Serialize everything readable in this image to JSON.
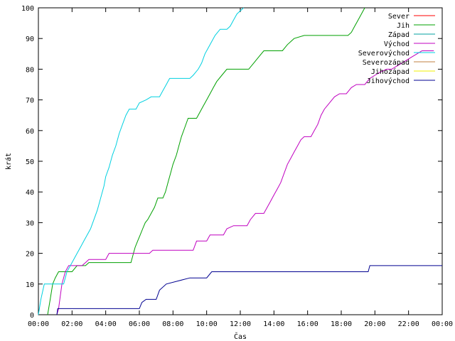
{
  "chart_data": {
    "type": "line",
    "xlabel": "Čas",
    "ylabel": "krát",
    "xlim": [
      0,
      24
    ],
    "ylim": [
      0,
      100
    ],
    "x_ticks": [
      "00:00",
      "02:00",
      "04:00",
      "06:00",
      "08:00",
      "10:00",
      "12:00",
      "14:00",
      "16:00",
      "18:00",
      "20:00",
      "22:00",
      "00:00"
    ],
    "y_ticks": [
      "0",
      "10",
      "20",
      "30",
      "40",
      "50",
      "60",
      "70",
      "80",
      "90",
      "100"
    ],
    "grid": false,
    "legend_position": "top-right",
    "series": [
      {
        "name": "Sever",
        "color": "#ff0000",
        "points": []
      },
      {
        "name": "Jih",
        "color": "#00a000",
        "points": [
          [
            0.55,
            0
          ],
          [
            0.7,
            5
          ],
          [
            0.85,
            10
          ],
          [
            1.0,
            12
          ],
          [
            1.2,
            14
          ],
          [
            2.0,
            14
          ],
          [
            2.3,
            16
          ],
          [
            2.8,
            16
          ],
          [
            3.0,
            17
          ],
          [
            5.5,
            17
          ],
          [
            5.65,
            20
          ],
          [
            5.75,
            22
          ],
          [
            5.9,
            24
          ],
          [
            6.05,
            26
          ],
          [
            6.2,
            28
          ],
          [
            6.35,
            30
          ],
          [
            6.5,
            31
          ],
          [
            6.7,
            33
          ],
          [
            6.9,
            35
          ],
          [
            7.1,
            38
          ],
          [
            7.4,
            38
          ],
          [
            7.55,
            40
          ],
          [
            7.7,
            43
          ],
          [
            7.85,
            46
          ],
          [
            8.0,
            49
          ],
          [
            8.2,
            52
          ],
          [
            8.35,
            55
          ],
          [
            8.5,
            58
          ],
          [
            8.7,
            61
          ],
          [
            8.9,
            64
          ],
          [
            9.4,
            64
          ],
          [
            9.6,
            66
          ],
          [
            9.8,
            68
          ],
          [
            10.0,
            70
          ],
          [
            10.2,
            72
          ],
          [
            10.4,
            74
          ],
          [
            10.6,
            76
          ],
          [
            10.9,
            78
          ],
          [
            11.2,
            80
          ],
          [
            12.5,
            80
          ],
          [
            12.8,
            82
          ],
          [
            13.1,
            84
          ],
          [
            13.4,
            86
          ],
          [
            14.5,
            86
          ],
          [
            14.8,
            88
          ],
          [
            15.2,
            90
          ],
          [
            15.8,
            91
          ],
          [
            18.4,
            91
          ],
          [
            18.6,
            92
          ],
          [
            18.8,
            94
          ],
          [
            19.0,
            96
          ],
          [
            19.2,
            98
          ],
          [
            19.4,
            100
          ]
        ]
      },
      {
        "name": "Západ",
        "color": "#00a0a0",
        "points": []
      },
      {
        "name": "Východ",
        "color": "#c000c0",
        "points": [
          [
            1.1,
            0
          ],
          [
            1.2,
            2
          ],
          [
            1.4,
            10
          ],
          [
            1.6,
            14
          ],
          [
            1.8,
            16
          ],
          [
            2.6,
            16
          ],
          [
            2.8,
            17
          ],
          [
            3.0,
            18
          ],
          [
            4.0,
            18
          ],
          [
            4.2,
            20
          ],
          [
            6.6,
            20
          ],
          [
            6.8,
            21
          ],
          [
            9.2,
            21
          ],
          [
            9.4,
            24
          ],
          [
            10.0,
            24
          ],
          [
            10.2,
            26
          ],
          [
            11.0,
            26
          ],
          [
            11.2,
            28
          ],
          [
            11.6,
            29
          ],
          [
            12.4,
            29
          ],
          [
            12.6,
            31
          ],
          [
            12.9,
            33
          ],
          [
            13.4,
            33
          ],
          [
            13.6,
            35
          ],
          [
            13.8,
            37
          ],
          [
            14.0,
            39
          ],
          [
            14.2,
            41
          ],
          [
            14.4,
            43
          ],
          [
            14.6,
            46
          ],
          [
            14.8,
            49
          ],
          [
            15.0,
            51
          ],
          [
            15.2,
            53
          ],
          [
            15.4,
            55
          ],
          [
            15.6,
            57
          ],
          [
            15.8,
            58
          ],
          [
            16.2,
            58
          ],
          [
            16.4,
            60
          ],
          [
            16.6,
            62
          ],
          [
            16.8,
            65
          ],
          [
            17.0,
            67
          ],
          [
            17.3,
            69
          ],
          [
            17.6,
            71
          ],
          [
            17.9,
            72
          ],
          [
            18.3,
            72
          ],
          [
            18.6,
            74
          ],
          [
            18.9,
            75
          ],
          [
            19.4,
            75
          ],
          [
            19.7,
            77
          ],
          [
            20.0,
            78
          ],
          [
            20.3,
            79
          ],
          [
            20.7,
            80
          ],
          [
            21.0,
            80
          ],
          [
            21.3,
            81
          ],
          [
            21.6,
            82
          ],
          [
            21.9,
            83
          ],
          [
            22.2,
            84
          ],
          [
            22.5,
            85
          ],
          [
            22.8,
            86
          ],
          [
            23.5,
            86
          ]
        ]
      },
      {
        "name": "Severovýchod",
        "color": "#00d0e0",
        "points": [
          [
            0.0,
            0
          ],
          [
            0.15,
            5
          ],
          [
            0.35,
            10
          ],
          [
            1.5,
            10
          ],
          [
            1.7,
            14
          ],
          [
            1.9,
            16
          ],
          [
            2.1,
            18
          ],
          [
            2.3,
            20
          ],
          [
            2.5,
            22
          ],
          [
            2.7,
            24
          ],
          [
            2.9,
            26
          ],
          [
            3.1,
            28
          ],
          [
            3.3,
            31
          ],
          [
            3.5,
            34
          ],
          [
            3.7,
            38
          ],
          [
            3.9,
            42
          ],
          [
            4.0,
            45
          ],
          [
            4.2,
            48
          ],
          [
            4.4,
            52
          ],
          [
            4.6,
            55
          ],
          [
            4.8,
            59
          ],
          [
            5.0,
            62
          ],
          [
            5.2,
            65
          ],
          [
            5.4,
            67
          ],
          [
            5.8,
            67
          ],
          [
            6.0,
            69
          ],
          [
            6.4,
            70
          ],
          [
            6.7,
            71
          ],
          [
            7.2,
            71
          ],
          [
            7.4,
            73
          ],
          [
            7.6,
            75
          ],
          [
            7.8,
            77
          ],
          [
            9.0,
            77
          ],
          [
            9.2,
            78
          ],
          [
            9.5,
            80
          ],
          [
            9.7,
            82
          ],
          [
            9.9,
            85
          ],
          [
            10.1,
            87
          ],
          [
            10.3,
            89
          ],
          [
            10.5,
            91
          ],
          [
            10.8,
            93
          ],
          [
            11.2,
            93
          ],
          [
            11.4,
            94
          ],
          [
            11.6,
            96
          ],
          [
            11.8,
            98
          ],
          [
            12.0,
            99
          ],
          [
            12.2,
            100
          ]
        ]
      },
      {
        "name": "Severozápad",
        "color": "#c08040",
        "points": []
      },
      {
        "name": "Jihozápad",
        "color": "#f0f000",
        "points": []
      },
      {
        "name": "Jihovýchod",
        "color": "#000090",
        "points": [
          [
            1.1,
            0
          ],
          [
            1.15,
            2
          ],
          [
            6.0,
            2
          ],
          [
            6.15,
            4
          ],
          [
            6.4,
            5
          ],
          [
            7.0,
            5
          ],
          [
            7.2,
            8
          ],
          [
            7.6,
            10
          ],
          [
            8.3,
            11
          ],
          [
            9.0,
            12
          ],
          [
            10.0,
            12
          ],
          [
            10.3,
            14
          ],
          [
            19.6,
            14
          ],
          [
            19.7,
            16
          ],
          [
            24.0,
            16
          ]
        ]
      }
    ]
  }
}
